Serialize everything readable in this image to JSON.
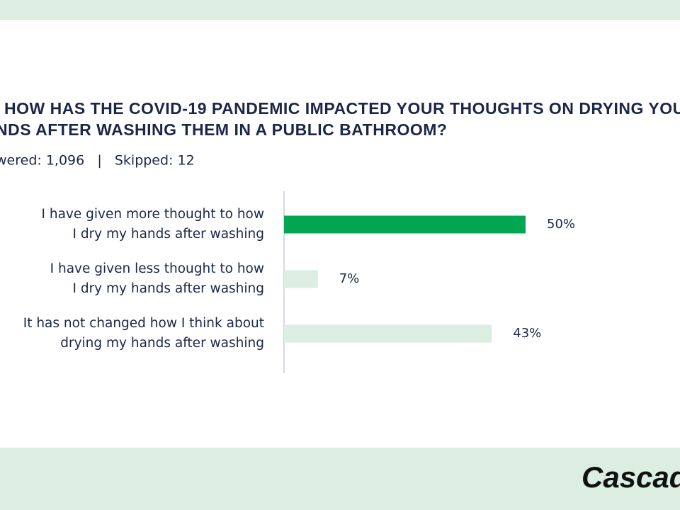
{
  "chart_data": {
    "type": "bar",
    "orientation": "horizontal",
    "title_lines": [
      "HOW HAS THE COVID-19 PANDEMIC IMPACTED YOUR THOUGHTS ON DRYING YOU",
      "NDS AFTER WASHING THEM IN A PUBLIC BATHROOM?"
    ],
    "subtitle": "wered: 1,096   |   Skipped: 12",
    "categories": [
      [
        "I have given more thought to how",
        "I dry my hands after washing"
      ],
      [
        "I have given less thought to how",
        "I dry my hands after washing"
      ],
      [
        "It has not changed how I think about",
        "drying my hands after washing"
      ]
    ],
    "values": [
      50,
      7,
      43
    ],
    "value_labels": [
      "50%",
      "7%",
      "43%"
    ],
    "colors": [
      "#00a651",
      "#dbeee1",
      "#dbeee1"
    ],
    "brand": "Cascad"
  }
}
